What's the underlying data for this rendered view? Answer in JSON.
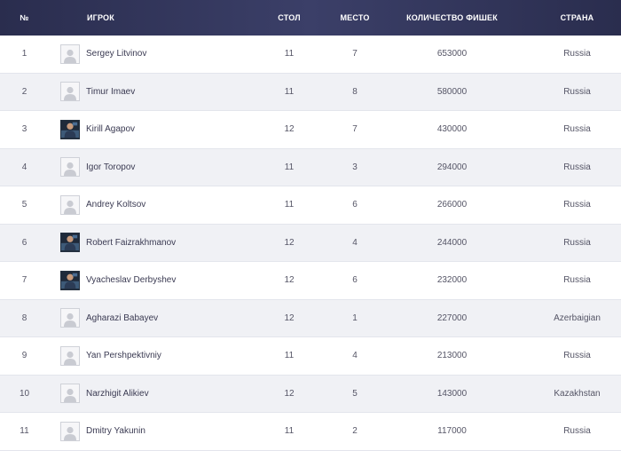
{
  "header": {
    "num": "№",
    "player": "ИГРОК",
    "table": "СТОЛ",
    "place": "МЕСТО",
    "chips": "КОЛИЧЕСТВО ФИШЕК",
    "country": "СТРАНА"
  },
  "rows": [
    {
      "num": "1",
      "name": "Sergey Litvinov",
      "table": "11",
      "place": "7",
      "chips": "653000",
      "country": "Russia",
      "avatar": "placeholder-avatar-icon"
    },
    {
      "num": "2",
      "name": "Timur Imaev",
      "table": "11",
      "place": "8",
      "chips": "580000",
      "country": "Russia",
      "avatar": "placeholder-avatar-icon"
    },
    {
      "num": "3",
      "name": "Kirill Agapov",
      "table": "12",
      "place": "7",
      "chips": "430000",
      "country": "Russia",
      "avatar": "player-photo"
    },
    {
      "num": "4",
      "name": "Igor Toropov",
      "table": "11",
      "place": "3",
      "chips": "294000",
      "country": "Russia",
      "avatar": "placeholder-avatar-icon"
    },
    {
      "num": "5",
      "name": "Andrey Koltsov",
      "table": "11",
      "place": "6",
      "chips": "266000",
      "country": "Russia",
      "avatar": "placeholder-avatar-icon"
    },
    {
      "num": "6",
      "name": "Robert Faizrakhmanov",
      "table": "12",
      "place": "4",
      "chips": "244000",
      "country": "Russia",
      "avatar": "player-photo"
    },
    {
      "num": "7",
      "name": "Vyacheslav Derbyshev",
      "table": "12",
      "place": "6",
      "chips": "232000",
      "country": "Russia",
      "avatar": "player-photo"
    },
    {
      "num": "8",
      "name": "Agharazi Babayev",
      "table": "12",
      "place": "1",
      "chips": "227000",
      "country": "Azerbaigian",
      "avatar": "placeholder-avatar-icon"
    },
    {
      "num": "9",
      "name": "Yan Pershpektivniy",
      "table": "11",
      "place": "4",
      "chips": "213000",
      "country": "Russia",
      "avatar": "placeholder-avatar-icon"
    },
    {
      "num": "10",
      "name": "Narzhigit Alikiev",
      "table": "12",
      "place": "5",
      "chips": "143000",
      "country": "Kazakhstan",
      "avatar": "placeholder-avatar-icon"
    },
    {
      "num": "11",
      "name": "Dmitry Yakunin",
      "table": "11",
      "place": "2",
      "chips": "117000",
      "country": "Russia",
      "avatar": "placeholder-avatar-icon"
    }
  ]
}
